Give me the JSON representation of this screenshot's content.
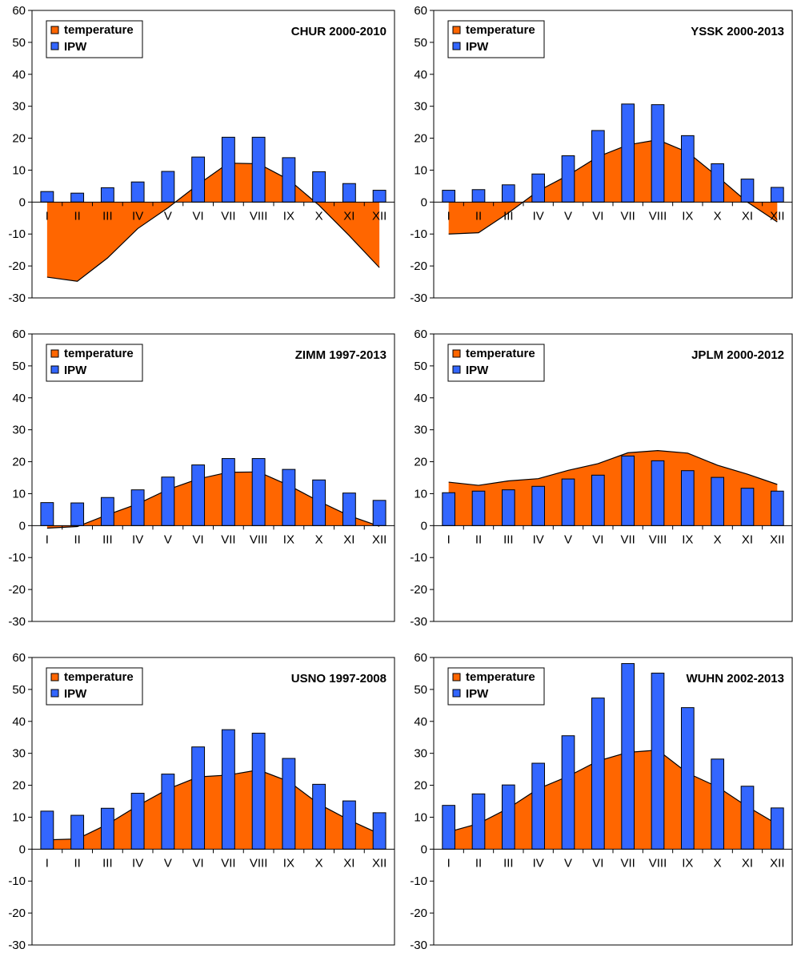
{
  "colors": {
    "temperature": "#ff6600",
    "ipw": "#3366ff",
    "outline": "#000000"
  },
  "chart_data": [
    {
      "type": "bar",
      "title": "CHUR 2000-2010",
      "categories": [
        "I",
        "II",
        "III",
        "IV",
        "V",
        "VI",
        "VII",
        "VIII",
        "IX",
        "X",
        "XI",
        "XII"
      ],
      "ylim": [
        -30,
        60
      ],
      "yticks": [
        -30,
        -20,
        -10,
        0,
        10,
        20,
        30,
        40,
        50,
        60
      ],
      "legend": "top-left",
      "series": [
        {
          "name": "temperature",
          "type": "area",
          "values": [
            -23.5,
            -24.8,
            -17.5,
            -8.3,
            -1.8,
            5.5,
            12.2,
            12,
            7,
            -1,
            -10.5,
            -20.5
          ]
        },
        {
          "name": "IPW",
          "type": "bar",
          "values": [
            3.3,
            2.8,
            4.5,
            6.3,
            9.6,
            14.1,
            20.3,
            20.3,
            13.9,
            9.5,
            5.8,
            3.7
          ]
        }
      ]
    },
    {
      "type": "bar",
      "title": "YSSK 2000-2013",
      "categories": [
        "I",
        "II",
        "III",
        "IV",
        "V",
        "VI",
        "VII",
        "VIII",
        "IX",
        "X",
        "XI",
        "XII"
      ],
      "ylim": [
        -30,
        60
      ],
      "yticks": [
        -30,
        -20,
        -10,
        0,
        10,
        20,
        30,
        40,
        50,
        60
      ],
      "legend": "top-left",
      "series": [
        {
          "name": "temperature",
          "type": "area",
          "values": [
            -10,
            -9.6,
            -3.4,
            3.5,
            8.4,
            14.2,
            17.9,
            19.5,
            15.6,
            8,
            0,
            -6.2
          ]
        },
        {
          "name": "IPW",
          "type": "bar",
          "values": [
            3.7,
            3.9,
            5.4,
            8.8,
            14.5,
            22.4,
            30.7,
            30.5,
            20.8,
            12,
            7.2,
            4.6
          ]
        }
      ]
    },
    {
      "type": "bar",
      "title": "ZIMM 1997-2013",
      "categories": [
        "I",
        "II",
        "III",
        "IV",
        "V",
        "VI",
        "VII",
        "VIII",
        "IX",
        "X",
        "XI",
        "XII"
      ],
      "ylim": [
        -30,
        60
      ],
      "yticks": [
        -30,
        -20,
        -10,
        0,
        10,
        20,
        30,
        40,
        50,
        60
      ],
      "legend": "top-left",
      "series": [
        {
          "name": "temperature",
          "type": "area",
          "values": [
            -0.8,
            -0.3,
            3.4,
            6.8,
            11.3,
            14.6,
            16.7,
            16.8,
            12.6,
            7.6,
            3.1,
            -0.2
          ]
        },
        {
          "name": "IPW",
          "type": "bar",
          "values": [
            7.2,
            7.1,
            8.8,
            11.2,
            15.2,
            19,
            21,
            21,
            17.6,
            14.3,
            10.2,
            7.9
          ]
        }
      ]
    },
    {
      "type": "bar",
      "title": "JPLM 2000-2012",
      "categories": [
        "I",
        "II",
        "III",
        "IV",
        "V",
        "VI",
        "VII",
        "VIII",
        "IX",
        "X",
        "XI",
        "XII"
      ],
      "ylim": [
        -30,
        60
      ],
      "yticks": [
        -30,
        -20,
        -10,
        0,
        10,
        20,
        30,
        40,
        50,
        60
      ],
      "legend": "top-left",
      "series": [
        {
          "name": "temperature",
          "type": "area",
          "values": [
            13.6,
            12.6,
            14,
            14.7,
            17.3,
            19.4,
            22.8,
            23.5,
            22.7,
            18.9,
            16.1,
            12.9
          ]
        },
        {
          "name": "IPW",
          "type": "bar",
          "values": [
            10.3,
            10.8,
            11.2,
            12.3,
            14.6,
            15.8,
            21.8,
            20.3,
            17.2,
            15.1,
            11.7,
            10.8
          ]
        }
      ]
    },
    {
      "type": "bar",
      "title": "USNO 1997-2008",
      "categories": [
        "I",
        "II",
        "III",
        "IV",
        "V",
        "VI",
        "VII",
        "VIII",
        "IX",
        "X",
        "XI",
        "XII"
      ],
      "ylim": [
        -30,
        60
      ],
      "yticks": [
        -30,
        -20,
        -10,
        0,
        10,
        20,
        30,
        40,
        50,
        60
      ],
      "legend": "top-left",
      "series": [
        {
          "name": "temperature",
          "type": "area",
          "values": [
            2.9,
            3.2,
            7.8,
            13.6,
            18.8,
            22.6,
            23.2,
            24.8,
            21.2,
            14.1,
            9.1,
            4.8
          ]
        },
        {
          "name": "IPW",
          "type": "bar",
          "values": [
            11.9,
            10.6,
            12.8,
            17.5,
            23.5,
            32,
            37.4,
            36.3,
            28.4,
            20.3,
            15.1,
            11.4
          ]
        }
      ]
    },
    {
      "type": "bar",
      "title": "WUHN 2002-2013",
      "categories": [
        "I",
        "II",
        "III",
        "IV",
        "V",
        "VI",
        "VII",
        "VIII",
        "IX",
        "X",
        "XI",
        "XII"
      ],
      "ylim": [
        -30,
        60
      ],
      "yticks": [
        -30,
        -20,
        -10,
        0,
        10,
        20,
        30,
        40,
        50,
        60
      ],
      "legend": "top-left",
      "series": [
        {
          "name": "temperature",
          "type": "area",
          "values": [
            5.4,
            8,
            12.8,
            18.9,
            22.8,
            27.6,
            30.3,
            31,
            23.8,
            19.5,
            13.3,
            7.8
          ]
        },
        {
          "name": "IPW",
          "type": "bar",
          "values": [
            13.7,
            17.3,
            20.1,
            26.9,
            35.5,
            47.3,
            58.1,
            55.1,
            44.3,
            28.2,
            19.7,
            12.9
          ]
        }
      ]
    }
  ]
}
